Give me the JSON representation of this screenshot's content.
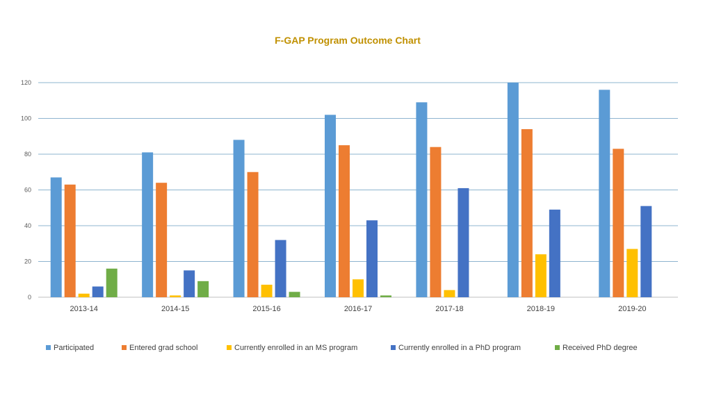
{
  "chart_data": {
    "type": "bar",
    "title": "F-GAP Program Outcome Chart",
    "xlabel": "",
    "ylabel": "",
    "ylim": [
      0,
      120
    ],
    "yticks": [
      0,
      20,
      40,
      60,
      80,
      100,
      120
    ],
    "grid": true,
    "legend_position": "bottom",
    "categories": [
      "2013-14",
      "2014-15",
      "2015-16",
      "2016-17",
      "2017-18",
      "2018-19",
      "2019-20"
    ],
    "series": [
      {
        "name": "Participated",
        "color": "#5B9BD5",
        "values": [
          67,
          81,
          88,
          102,
          109,
          120,
          116
        ]
      },
      {
        "name": "Entered grad school",
        "color": "#ED7D31",
        "values": [
          63,
          64,
          70,
          85,
          84,
          94,
          83
        ]
      },
      {
        "name": "Currently enrolled in an MS program",
        "color": "#FFC000",
        "values": [
          2,
          1,
          7,
          10,
          4,
          24,
          27
        ]
      },
      {
        "name": "Currently enrolled in a PhD program",
        "color": "#4472C4",
        "values": [
          6,
          15,
          32,
          43,
          61,
          49,
          51
        ]
      },
      {
        "name": "Received PhD degree",
        "color": "#70AD47",
        "values": [
          16,
          9,
          3,
          1,
          null,
          null,
          null
        ]
      }
    ],
    "colors": {
      "title": "#C09000",
      "grid": "#8EB4CF",
      "axis": "#BFBFBF"
    }
  }
}
